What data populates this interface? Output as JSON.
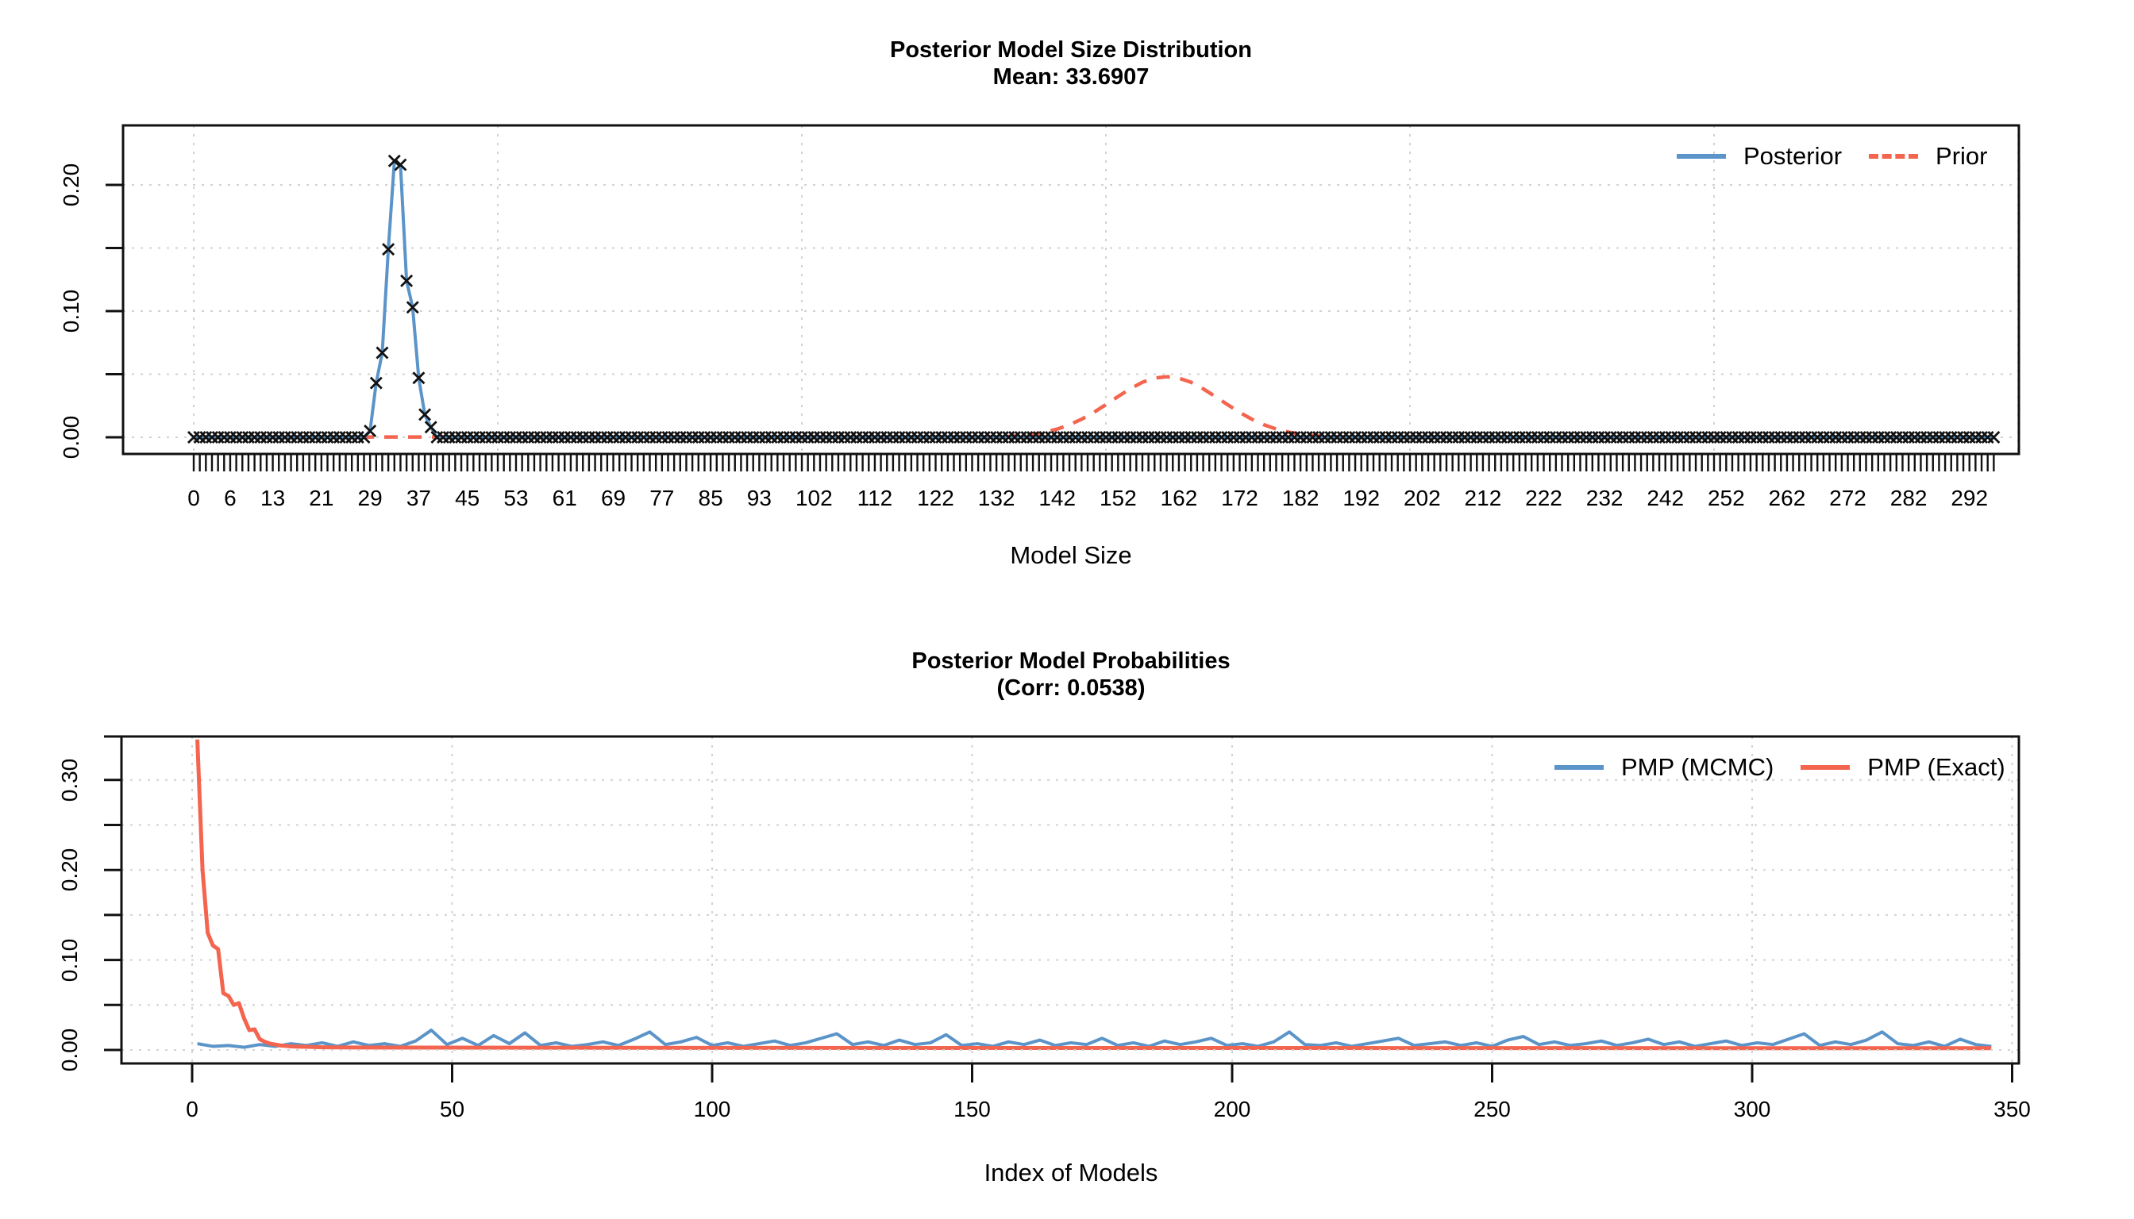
{
  "colors": {
    "posterior_blue": "#5b94c8",
    "prior_red": "#f4654f",
    "marker_black": "#111111",
    "grid_gray": "#d2d2d2",
    "axis_black": "#111111",
    "background": "#ffffff"
  },
  "chart_data": [
    {
      "type": "line",
      "title": "Posterior Model Size Distribution",
      "subtitle": "Mean: 33.6907",
      "xlabel": "Model Size",
      "ylabel": "",
      "xlim": [
        -12,
        304
      ],
      "ylim": [
        -0.013,
        0.247
      ],
      "x_tick_labels": [
        0,
        6,
        13,
        21,
        29,
        37,
        45,
        53,
        61,
        69,
        77,
        85,
        93,
        102,
        112,
        122,
        132,
        142,
        152,
        162,
        172,
        182,
        192,
        202,
        212,
        222,
        232,
        242,
        252,
        262,
        272,
        282,
        292
      ],
      "x_comb_ticks": {
        "from": 0,
        "to": 296,
        "step": 1
      },
      "y_tick_values": [
        0,
        0.05,
        0.1,
        0.15,
        0.2
      ],
      "y_tick_labels": [
        {
          "value": 0,
          "label": "0.00"
        },
        {
          "value": 0.1,
          "label": "0.10"
        },
        {
          "value": 0.2,
          "label": "0.20"
        }
      ],
      "grid_x_values": [
        0,
        50,
        100,
        150,
        200,
        250,
        300
      ],
      "legend": [
        {
          "label": "Posterior",
          "color": "#5b94c8",
          "dash": "solid"
        },
        {
          "label": "Prior",
          "color": "#f4654f",
          "dash": "dashed"
        }
      ],
      "series": {
        "posterior": {
          "name": "Posterior",
          "size_min": 0,
          "size_max": 296,
          "marker": "x",
          "nonzero": {
            "29": 0.005,
            "30": 0.043,
            "31": 0.067,
            "32": 0.149,
            "33": 0.219,
            "34": 0.216,
            "35": 0.124,
            "36": 0.103,
            "37": 0.047,
            "38": 0.018,
            "39": 0.008
          }
        },
        "prior": {
          "name": "Prior",
          "baseline": 0.0002,
          "hump_x": [
            130,
            132,
            134,
            136,
            138,
            140,
            142,
            144,
            146,
            148,
            150,
            152,
            154,
            156,
            158,
            160,
            162,
            164,
            166,
            168,
            170,
            172,
            174,
            176,
            178,
            180,
            182,
            184,
            186,
            188,
            190
          ],
          "hump_y": [
            0.0002,
            0.0004,
            0.0007,
            0.0014,
            0.0024,
            0.0041,
            0.0065,
            0.0099,
            0.0143,
            0.0197,
            0.0259,
            0.0323,
            0.0384,
            0.0436,
            0.0469,
            0.048,
            0.0469,
            0.0436,
            0.0384,
            0.0323,
            0.0259,
            0.0197,
            0.0143,
            0.0099,
            0.0065,
            0.0041,
            0.0024,
            0.0014,
            0.0007,
            0.0004,
            0.0002
          ]
        }
      }
    },
    {
      "type": "line",
      "title": "Posterior Model Probabilities",
      "subtitle": "(Corr: 0.0538)",
      "xlabel": "Index of Models",
      "ylabel": "",
      "xlim": [
        -13,
        363
      ],
      "ylim": [
        -0.014,
        0.363
      ],
      "x_tick_values": [
        0,
        50,
        100,
        150,
        200,
        250,
        300,
        350
      ],
      "y_tick_values": [
        0,
        0.05,
        0.1,
        0.15,
        0.2,
        0.25,
        0.3,
        0.35
      ],
      "y_tick_labels": [
        {
          "value": 0,
          "label": "0.00"
        },
        {
          "value": 0.1,
          "label": "0.10"
        },
        {
          "value": 0.2,
          "label": "0.20"
        },
        {
          "value": 0.3,
          "label": "0.30"
        }
      ],
      "grid_x_values": [
        0,
        50,
        100,
        150,
        200,
        250,
        300,
        350
      ],
      "legend": [
        {
          "label": "PMP (MCMC)",
          "color": "#5b94c8",
          "dash": "solid"
        },
        {
          "label": "PMP (Exact)",
          "color": "#f4654f",
          "dash": "solid"
        }
      ],
      "series": {
        "pmp_mcmc": {
          "name": "PMP (MCMC)",
          "x_start": 1,
          "x_step": 3,
          "values": [
            0.007,
            0.004,
            0.005,
            0.003,
            0.006,
            0.004,
            0.007,
            0.005,
            0.008,
            0.004,
            0.009,
            0.005,
            0.007,
            0.004,
            0.01,
            0.022,
            0.006,
            0.013,
            0.005,
            0.016,
            0.007,
            0.019,
            0.005,
            0.008,
            0.004,
            0.006,
            0.009,
            0.005,
            0.012,
            0.02,
            0.006,
            0.009,
            0.014,
            0.005,
            0.008,
            0.004,
            0.007,
            0.01,
            0.005,
            0.008,
            0.013,
            0.018,
            0.006,
            0.009,
            0.005,
            0.011,
            0.006,
            0.008,
            0.017,
            0.005,
            0.007,
            0.004,
            0.009,
            0.006,
            0.011,
            0.005,
            0.008,
            0.006,
            0.013,
            0.005,
            0.008,
            0.004,
            0.01,
            0.006,
            0.009,
            0.013,
            0.005,
            0.007,
            0.004,
            0.009,
            0.02,
            0.006,
            0.005,
            0.008,
            0.004,
            0.007,
            0.01,
            0.013,
            0.005,
            0.007,
            0.009,
            0.005,
            0.008,
            0.004,
            0.011,
            0.015,
            0.006,
            0.009,
            0.005,
            0.007,
            0.01,
            0.005,
            0.008,
            0.012,
            0.006,
            0.009,
            0.004,
            0.007,
            0.01,
            0.005,
            0.008,
            0.006,
            0.012,
            0.018,
            0.005,
            0.009,
            0.006,
            0.011,
            0.02,
            0.007,
            0.005,
            0.009,
            0.004,
            0.012,
            0.006,
            0.004
          ]
        },
        "pmp_exact": {
          "name": "PMP (Exact)",
          "points": [
            [
              1,
              0.345
            ],
            [
              2,
              0.2
            ],
            [
              3,
              0.13
            ],
            [
              4,
              0.116
            ],
            [
              5,
              0.112
            ],
            [
              6,
              0.063
            ],
            [
              7,
              0.06
            ],
            [
              8,
              0.05
            ],
            [
              9,
              0.052
            ],
            [
              10,
              0.035
            ],
            [
              11,
              0.022
            ],
            [
              12,
              0.023
            ],
            [
              13,
              0.012
            ],
            [
              14,
              0.009
            ],
            [
              15,
              0.007
            ],
            [
              16,
              0.006
            ],
            [
              17,
              0.005
            ],
            [
              18,
              0.0045
            ],
            [
              19,
              0.004
            ],
            [
              20,
              0.0038
            ],
            [
              25,
              0.003
            ],
            [
              30,
              0.0028
            ],
            [
              40,
              0.0026
            ],
            [
              60,
              0.0025
            ],
            [
              80,
              0.0024
            ],
            [
              100,
              0.0023
            ],
            [
              150,
              0.0022
            ],
            [
              200,
              0.0022
            ],
            [
              250,
              0.0021
            ],
            [
              300,
              0.002
            ],
            [
              346,
              0.002
            ]
          ]
        }
      }
    }
  ]
}
